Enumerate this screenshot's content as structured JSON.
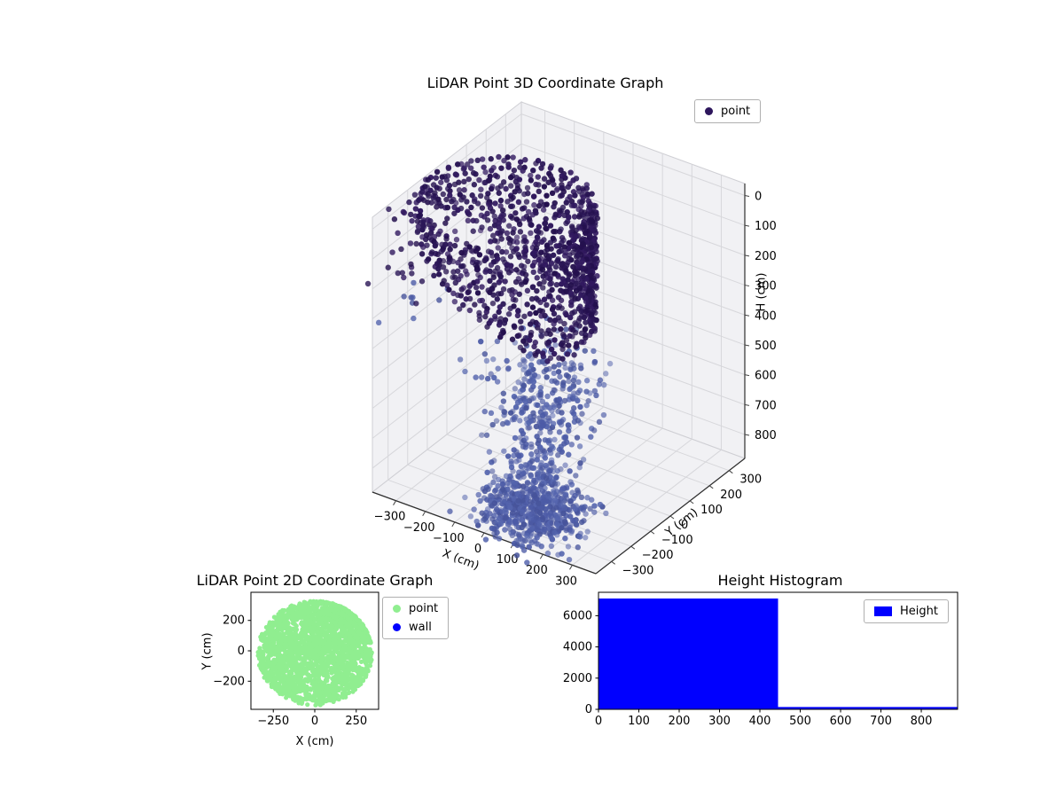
{
  "figure": {
    "background": "#ffffff"
  },
  "style": {
    "pane_color": "#f1f1f4",
    "grid_color": "#d7d7db",
    "pane_edge_color": "#cfcfd4",
    "axis_line_color": "#2e2e2e"
  },
  "chart_data": [
    {
      "type": "scatter3d",
      "title": "LiDAR Point 3D Coordinate Graph",
      "xlabel": "X (cm)",
      "ylabel": "Y (cm)",
      "zlabel": "H (cm)",
      "xlim": [
        -380,
        380
      ],
      "ylim": [
        -380,
        380
      ],
      "hlim": [
        -40,
        880
      ],
      "h_axis_inverted": true,
      "xticks": [
        -300,
        -200,
        -100,
        0,
        100,
        200,
        300
      ],
      "yticks": [
        -300,
        -200,
        -100,
        0,
        100,
        200,
        300
      ],
      "hticks": [
        0,
        100,
        200,
        300,
        400,
        500,
        600,
        700,
        800
      ],
      "legend": [
        {
          "label": "point",
          "color": "#2d165c",
          "marker": "dot"
        }
      ],
      "colors": {
        "upper": [
          "#2a1656",
          "#31195f",
          "#24104e"
        ],
        "lower": [
          "#4c5ba6",
          "#5565ae",
          "#47549b"
        ]
      },
      "generators": {
        "seed": 1337,
        "rings": {
          "center": [
            -150,
            -50
          ],
          "radius": 250,
          "radius_jitter": 13,
          "h_min": 0,
          "h_max": 400,
          "h_step": 14,
          "max_points_per_ring": 52,
          "arc_center_deg": 30,
          "cov_start_deg": 360,
          "cov_end_deg": 115
        },
        "interior": {
          "count": 90,
          "r_max": 205,
          "h_range": [
            15,
            270
          ]
        },
        "funnel": {
          "count": 380,
          "h_range": [
            400,
            700
          ],
          "center_start": [
            40,
            -90
          ],
          "center_end": [
            130,
            -300
          ],
          "sigma_start": 95,
          "sigma_end": 55
        },
        "bottom_blob": {
          "count": 620,
          "center": [
            140,
            -330
          ],
          "sigma": 75,
          "h_range": [
            690,
            835
          ]
        },
        "left_outliers": {
          "count": 26,
          "x_range": [
            -560,
            -350
          ],
          "y_range": [
            -230,
            -20
          ],
          "h_range": [
            140,
            460
          ]
        },
        "upper_left": {
          "count": 16,
          "x_range": [
            -430,
            -300
          ],
          "y_range": [
            -210,
            -70
          ],
          "h_range": [
            10,
            130
          ]
        }
      }
    },
    {
      "type": "scatter",
      "title": "LiDAR Point 2D Coordinate Graph",
      "xlabel": "X (cm)",
      "ylabel": "Y (cm)",
      "xlim": [
        -385,
        385
      ],
      "ylim": [
        -385,
        385
      ],
      "xticks": [
        -250,
        0,
        250
      ],
      "yticks": [
        -200,
        0,
        200
      ],
      "legend": [
        {
          "label": "point",
          "color": "#90ee90",
          "marker": "dot"
        },
        {
          "label": "wall",
          "color": "#0000ff",
          "marker": "dot"
        }
      ],
      "point_color": "#90ee90",
      "wall_color": "#0000ff",
      "generators": {
        "seed": 2024,
        "disc": {
          "count": 2100,
          "center": [
            0,
            -15
          ],
          "radius": 345
        },
        "arcs": {
          "radii": [
            235,
            270,
            305,
            340
          ],
          "theta_deg": [
            12,
            78
          ],
          "points_per_arc": 100
        }
      },
      "wall_points": []
    },
    {
      "type": "histogram",
      "title": "Height Histogram",
      "legend": [
        {
          "label": "Height",
          "color": "#0000ff",
          "marker": "patch"
        }
      ],
      "bar_color": "#0000ff",
      "bin_edges": [
        0,
        445,
        890
      ],
      "counts": [
        7100,
        150
      ],
      "xlim": [
        0,
        890
      ],
      "ylim": [
        0,
        7500
      ],
      "xticks": [
        0,
        100,
        200,
        300,
        400,
        500,
        600,
        700,
        800
      ],
      "yticks": [
        0,
        2000,
        4000,
        6000
      ]
    }
  ]
}
